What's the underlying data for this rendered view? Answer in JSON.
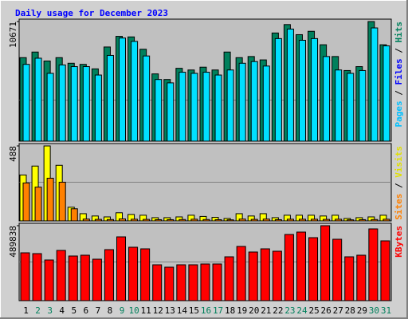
{
  "title": "Daily usage for December 2023",
  "categories": [
    "1",
    "2",
    "3",
    "4",
    "5",
    "6",
    "7",
    "8",
    "9",
    "10",
    "11",
    "12",
    "13",
    "14",
    "15",
    "16",
    "17",
    "18",
    "19",
    "20",
    "21",
    "22",
    "23",
    "24",
    "25",
    "26",
    "27",
    "28",
    "29",
    "30",
    "31"
  ],
  "category_colors": [
    "#000000",
    "#00805c",
    "#00805c",
    "#000000",
    "#000000",
    "#000000",
    "#000000",
    "#000000",
    "#00805c",
    "#00805c",
    "#000000",
    "#000000",
    "#000000",
    "#000000",
    "#000000",
    "#00805c",
    "#00805c",
    "#000000",
    "#000000",
    "#000000",
    "#000000",
    "#000000",
    "#00805c",
    "#00805c",
    "#000000",
    "#000000",
    "#000000",
    "#000000",
    "#000000",
    "#00805c",
    "#00805c"
  ],
  "chart_data": [
    {
      "type": "bar",
      "ylim": [
        0,
        10671
      ],
      "yticks": [
        10671
      ],
      "side_label": [
        {
          "text": "Pages",
          "color": "#00c0ff"
        },
        {
          "text": " / ",
          "color": "#000000"
        },
        {
          "text": "Files",
          "color": "#0000ff"
        },
        {
          "text": " / ",
          "color": "#000000"
        },
        {
          "text": "Hits",
          "color": "#00805c"
        }
      ],
      "series": [
        {
          "color": "#00805c",
          "values": [
            7450,
            7950,
            7150,
            7450,
            6950,
            6850,
            6450,
            8400,
            9350,
            9300,
            8200,
            6000,
            5500,
            6500,
            6350,
            6600,
            6350,
            7950,
            7450,
            7550,
            7250,
            9650,
            10400,
            9500,
            9800,
            8600,
            7550,
            6300,
            6650,
            10671,
            8600
          ]
        },
        {
          "color": "#00e0ff",
          "values": [
            6850,
            7400,
            6050,
            6800,
            6650,
            6650,
            5900,
            7650,
            9200,
            8900,
            7600,
            5500,
            5200,
            6150,
            6050,
            6150,
            5900,
            6350,
            6950,
            7100,
            6700,
            9150,
            10000,
            9000,
            9150,
            7550,
            6350,
            6050,
            6300,
            10100,
            8500
          ]
        }
      ]
    },
    {
      "type": "bar",
      "ylim": [
        0,
        488
      ],
      "yticks": [
        488
      ],
      "side_label": [
        {
          "text": "Sites",
          "color": "#ff8000"
        },
        {
          "text": " / ",
          "color": "#000000"
        },
        {
          "text": "Visits",
          "color": "#e0e000"
        }
      ],
      "series": [
        {
          "color": "#ffff00",
          "values": [
            299,
            357,
            488,
            362,
            89,
            47,
            32,
            26,
            53,
            42,
            37,
            21,
            21,
            26,
            37,
            29,
            23,
            16,
            47,
            32,
            47,
            21,
            37,
            37,
            37,
            32,
            37,
            16,
            21,
            26,
            37
          ]
        },
        {
          "color": "#ff8000",
          "values": [
            247,
            220,
            278,
            252,
            79,
            12,
            10,
            9,
            13,
            11,
            10,
            8,
            8,
            9,
            11,
            9,
            8,
            7,
            12,
            10,
            12,
            8,
            11,
            11,
            11,
            10,
            11,
            7,
            8,
            9,
            11
          ]
        }
      ]
    },
    {
      "type": "bar",
      "ylim": [
        0,
        489838
      ],
      "yticks": [
        489838
      ],
      "side_label": [
        {
          "text": "KBytes",
          "color": "#ff0000"
        }
      ],
      "series": [
        {
          "color": "#ff0000",
          "values": [
            312660,
            307440,
            265770,
            328290,
            291820,
            297030,
            270970,
            333500,
            416880,
            349140,
            338720,
            234500,
            218860,
            234500,
            234500,
            239710,
            239710,
            286610,
            354350,
            317870,
            338720,
            323080,
            432520,
            448150,
            411670,
            489838,
            401250,
            286610,
            297030,
            468990,
            390830
          ]
        }
      ]
    }
  ]
}
